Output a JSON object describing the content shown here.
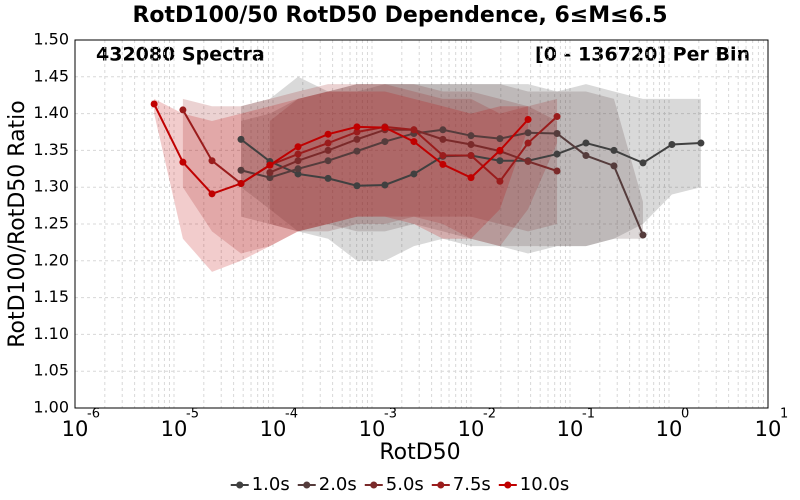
{
  "chart_data": {
    "type": "line",
    "title": "RotD100/50 RotD50 Dependence, 6≤M≤6.5",
    "annotations": [
      "432080 Spectra",
      "[0 - 136720] Per Bin"
    ],
    "x_label": "RotD50",
    "y_label": "RotD100/RotD50 Ratio",
    "xscale": "log",
    "grid": true,
    "legend": "bottom",
    "xlim": [
      1e-06,
      10
    ],
    "xticks": [
      {
        "value": 1e-06,
        "label": "10",
        "exponent": "-6"
      },
      {
        "value": 1e-05,
        "label": "10",
        "exponent": "-5"
      },
      {
        "value": 0.0001,
        "label": "10",
        "exponent": "-4"
      },
      {
        "value": 0.001,
        "label": "10",
        "exponent": "-3"
      },
      {
        "value": 0.01,
        "label": "10",
        "exponent": "-2"
      },
      {
        "value": 0.1,
        "label": "10",
        "exponent": "-1"
      },
      {
        "value": 1,
        "label": "10",
        "exponent": "0"
      },
      {
        "value": 10,
        "label": "10",
        "exponent": "1"
      }
    ],
    "ylim": [
      1.0,
      1.5
    ],
    "yticks": [
      {
        "value": 1.0,
        "label": "1.00"
      },
      1.05,
      {
        "value": 1.1,
        "label": "1.10"
      },
      1.15,
      {
        "value": 1.2,
        "label": "1.20"
      },
      1.25,
      {
        "value": 1.3,
        "label": "1.30"
      },
      1.35,
      {
        "value": 1.4,
        "label": "1.40"
      },
      1.45,
      {
        "value": 1.5,
        "label": "1.50"
      }
    ],
    "series": [
      {
        "name": "1.0s",
        "color": "#404040",
        "x": [
          4.75e-05,
          9.3e-05,
          0.000179,
          0.00036,
          0.000705,
          0.00135,
          0.00265,
          0.0052,
          0.01,
          0.0196,
          0.0377,
          0.074,
          0.145,
          0.278,
          0.546,
          1.07,
          2.1
        ],
        "values": [
          1.365,
          1.335,
          1.318,
          1.312,
          1.302,
          1.303,
          1.318,
          1.342,
          1.343,
          1.336,
          1.336,
          1.345,
          1.36,
          1.35,
          1.333,
          1.358,
          1.36
        ],
        "lower": [
          1.3,
          1.27,
          1.24,
          1.23,
          1.2,
          1.2,
          1.22,
          1.23,
          1.22,
          1.22,
          1.21,
          1.22,
          1.22,
          1.23,
          1.25,
          1.29,
          1.3
        ],
        "upper": [
          1.41,
          1.42,
          1.45,
          1.43,
          1.44,
          1.44,
          1.44,
          1.44,
          1.44,
          1.44,
          1.44,
          1.43,
          1.44,
          1.43,
          1.42,
          1.42,
          1.42
        ]
      },
      {
        "name": "2.0s",
        "color": "#553c3c",
        "x": [
          4.75e-05,
          9.3e-05,
          0.000179,
          0.00036,
          0.000705,
          0.00135,
          0.00265,
          0.0052,
          0.01,
          0.0196,
          0.0377,
          0.074,
          0.145,
          0.278,
          0.546
        ],
        "values": [
          1.323,
          1.313,
          1.325,
          1.336,
          1.349,
          1.362,
          1.373,
          1.378,
          1.37,
          1.366,
          1.374,
          1.373,
          1.343,
          1.329,
          1.235
        ],
        "lower": [
          1.26,
          1.25,
          1.24,
          1.25,
          1.24,
          1.24,
          1.25,
          1.24,
          1.23,
          1.22,
          1.22,
          1.22,
          1.22,
          1.23,
          1.23
        ],
        "upper": [
          1.39,
          1.4,
          1.42,
          1.43,
          1.43,
          1.44,
          1.44,
          1.44,
          1.44,
          1.44,
          1.43,
          1.43,
          1.43,
          1.42,
          1.28
        ]
      },
      {
        "name": "5.0s",
        "color": "#7a2a2a",
        "x": [
          9.3e-05,
          0.000179,
          0.00036,
          0.000705,
          0.00135,
          0.00265,
          0.0052,
          0.01,
          0.0196,
          0.0377,
          0.074
        ],
        "values": [
          1.32,
          1.336,
          1.35,
          1.365,
          1.378,
          1.378,
          1.365,
          1.358,
          1.349,
          1.335,
          1.322
        ],
        "lower": [
          1.25,
          1.24,
          1.24,
          1.25,
          1.25,
          1.26,
          1.26,
          1.26,
          1.25,
          1.24,
          1.25
        ],
        "upper": [
          1.39,
          1.42,
          1.43,
          1.44,
          1.44,
          1.44,
          1.43,
          1.43,
          1.42,
          1.41,
          1.39
        ]
      },
      {
        "name": "7.5s",
        "color": "#9a1c1c",
        "x": [
          1.23e-05,
          2.42e-05,
          4.75e-05,
          9.3e-05,
          0.000179,
          0.00036,
          0.000705,
          0.00135,
          0.00265,
          0.0052,
          0.01,
          0.0196,
          0.0377,
          0.074
        ],
        "values": [
          1.405,
          1.336,
          1.305,
          1.33,
          1.345,
          1.36,
          1.375,
          1.382,
          1.378,
          1.343,
          1.343,
          1.308,
          1.36,
          1.396
        ],
        "lower": [
          1.3,
          1.24,
          1.21,
          1.22,
          1.24,
          1.25,
          1.26,
          1.26,
          1.26,
          1.25,
          1.23,
          1.22,
          1.27,
          1.36
        ],
        "upper": [
          1.42,
          1.41,
          1.41,
          1.42,
          1.43,
          1.44,
          1.44,
          1.44,
          1.43,
          1.42,
          1.42,
          1.4,
          1.41,
          1.42
        ]
      },
      {
        "name": "10.0s",
        "color": "#c00000",
        "x": [
          6.3e-06,
          1.23e-05,
          2.42e-05,
          4.75e-05,
          9.3e-05,
          0.000179,
          0.00036,
          0.000705,
          0.00135,
          0.00265,
          0.0052,
          0.01,
          0.0196,
          0.0377
        ],
        "values": [
          1.413,
          1.334,
          1.291,
          1.305,
          1.33,
          1.355,
          1.372,
          1.382,
          1.381,
          1.362,
          1.331,
          1.313,
          1.35,
          1.392
        ],
        "lower": [
          1.4,
          1.23,
          1.185,
          1.2,
          1.22,
          1.24,
          1.25,
          1.26,
          1.26,
          1.25,
          1.23,
          1.23,
          1.27,
          1.38
        ],
        "upper": [
          1.42,
          1.4,
          1.39,
          1.4,
          1.41,
          1.42,
          1.43,
          1.43,
          1.43,
          1.42,
          1.41,
          1.4,
          1.41,
          1.41
        ]
      }
    ]
  }
}
